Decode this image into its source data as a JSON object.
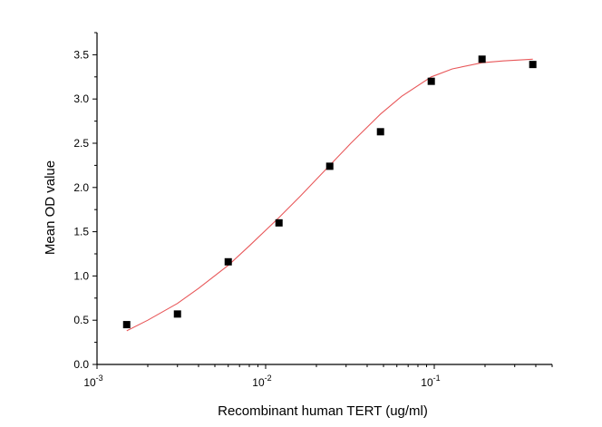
{
  "chart_data": {
    "type": "scatter",
    "xlabel": "Recombinant human TERT (ug/ml)",
    "ylabel": "Mean OD value",
    "xscale": "log",
    "xlim": [
      0.001,
      0.5
    ],
    "ylim": [
      0.0,
      3.75
    ],
    "grid": false,
    "x_ticks": [
      {
        "value": 0.001,
        "mantissa": "10",
        "exponent": "-3"
      },
      {
        "value": 0.01,
        "mantissa": "10",
        "exponent": "-2"
      },
      {
        "value": 0.1,
        "mantissa": "10",
        "exponent": "-1"
      }
    ],
    "y_ticks": [
      "0.0",
      "0.5",
      "1.0",
      "1.5",
      "2.0",
      "2.5",
      "3.0",
      "3.5"
    ],
    "series": [
      {
        "marker": "square",
        "color": "#000000",
        "x": [
          0.0015,
          0.003,
          0.006,
          0.012,
          0.024,
          0.048,
          0.096,
          0.192,
          0.384
        ],
        "y": [
          0.45,
          0.57,
          1.16,
          1.6,
          2.24,
          2.63,
          3.2,
          3.45,
          3.39
        ]
      }
    ],
    "fit_curve": {
      "color": "#e8585a",
      "x": [
        0.0015,
        0.002,
        0.003,
        0.004,
        0.006,
        0.008,
        0.012,
        0.016,
        0.024,
        0.032,
        0.048,
        0.064,
        0.096,
        0.128,
        0.192,
        0.256,
        0.384
      ],
      "y": [
        0.38,
        0.5,
        0.69,
        0.86,
        1.12,
        1.34,
        1.66,
        1.9,
        2.25,
        2.5,
        2.83,
        3.03,
        3.25,
        3.34,
        3.41,
        3.43,
        3.45
      ]
    }
  }
}
